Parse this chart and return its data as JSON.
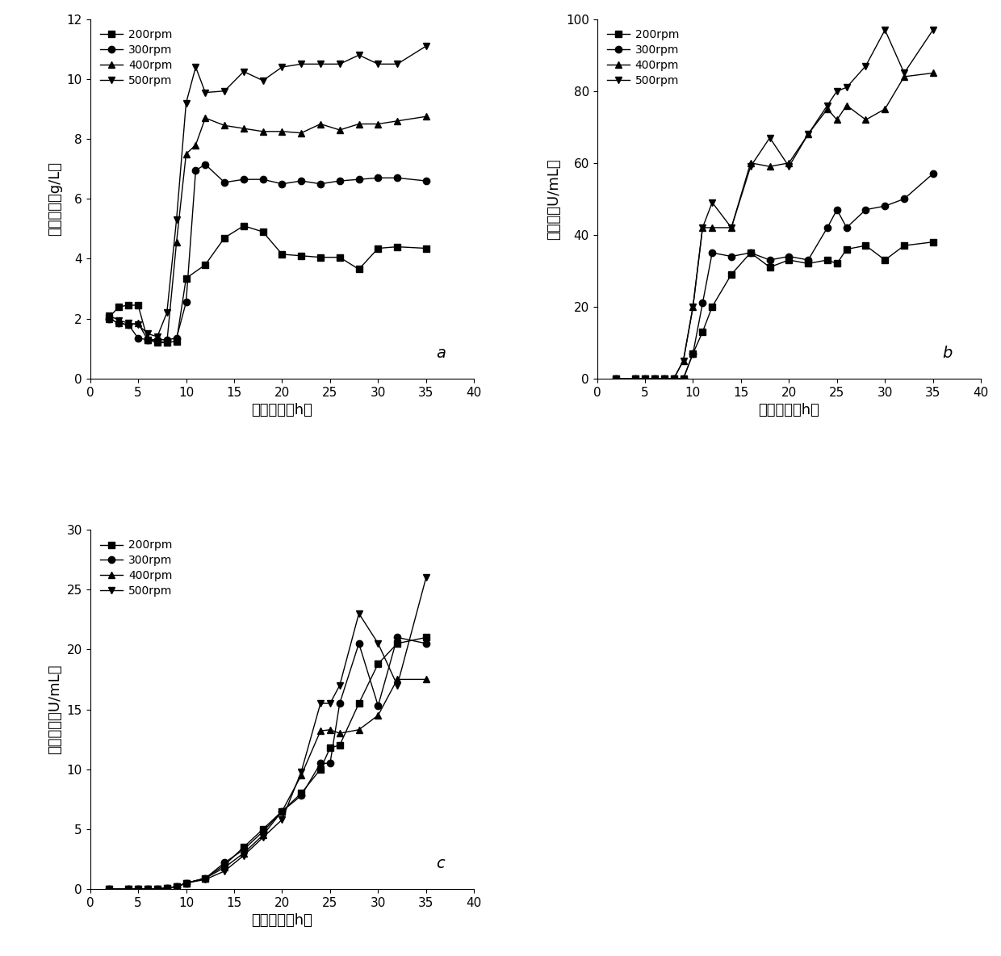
{
  "panel_a": {
    "xlabel": "发酵时间（h）",
    "ylabel": "菌体干重（g/L）",
    "label": "a",
    "xlim": [
      0,
      40
    ],
    "ylim": [
      0,
      12
    ],
    "xticks": [
      0,
      5,
      10,
      15,
      20,
      25,
      30,
      35,
      40
    ],
    "yticks": [
      0,
      2,
      4,
      6,
      8,
      10,
      12
    ],
    "series": {
      "200rpm": {
        "x": [
          2,
          3,
          4,
          5,
          6,
          7,
          8,
          9,
          10,
          12,
          14,
          16,
          18,
          20,
          22,
          24,
          26,
          28,
          30,
          32,
          35
        ],
        "y": [
          2.05,
          2.4,
          2.45,
          2.45,
          1.3,
          1.25,
          1.2,
          1.25,
          3.35,
          3.8,
          4.7,
          5.1,
          4.9,
          4.15,
          4.1,
          4.05,
          4.05,
          3.65,
          4.35,
          4.4,
          4.35
        ],
        "marker": "s"
      },
      "300rpm": {
        "x": [
          2,
          3,
          4,
          5,
          6,
          7,
          8,
          9,
          10,
          11,
          12,
          14,
          16,
          18,
          20,
          22,
          24,
          26,
          28,
          30,
          32,
          35
        ],
        "y": [
          2.0,
          1.85,
          1.8,
          1.35,
          1.3,
          1.3,
          1.3,
          1.35,
          2.55,
          6.95,
          7.15,
          6.55,
          6.65,
          6.65,
          6.5,
          6.6,
          6.5,
          6.6,
          6.65,
          6.7,
          6.7,
          6.6
        ],
        "marker": "o"
      },
      "400rpm": {
        "x": [
          2,
          3,
          4,
          5,
          6,
          7,
          8,
          9,
          10,
          11,
          12,
          14,
          16,
          18,
          20,
          22,
          24,
          26,
          28,
          30,
          32,
          35
        ],
        "y": [
          2.0,
          1.85,
          1.8,
          1.85,
          1.3,
          1.2,
          1.2,
          4.55,
          7.5,
          7.8,
          8.7,
          8.45,
          8.35,
          8.25,
          8.25,
          8.2,
          8.5,
          8.3,
          8.5,
          8.5,
          8.6,
          8.75
        ],
        "marker": "^"
      },
      "500rpm": {
        "x": [
          2,
          3,
          4,
          5,
          6,
          7,
          8,
          9,
          10,
          11,
          12,
          14,
          16,
          18,
          20,
          22,
          24,
          26,
          28,
          30,
          32,
          35
        ],
        "y": [
          2.1,
          1.95,
          1.85,
          1.8,
          1.5,
          1.4,
          2.2,
          5.3,
          9.2,
          10.4,
          9.55,
          9.6,
          10.25,
          9.95,
          10.4,
          10.5,
          10.5,
          10.5,
          10.8,
          10.5,
          10.5,
          11.1
        ],
        "marker": "v"
      }
    }
  },
  "panel_b": {
    "xlabel": "发酵时间（h）",
    "ylabel": "总酶活（U/mL）",
    "label": "b",
    "xlim": [
      0,
      40
    ],
    "ylim": [
      0,
      100
    ],
    "xticks": [
      0,
      5,
      10,
      15,
      20,
      25,
      30,
      35,
      40
    ],
    "yticks": [
      0,
      20,
      40,
      60,
      80,
      100
    ],
    "series": {
      "200rpm": {
        "x": [
          2,
          4,
          5,
          6,
          7,
          8,
          9,
          10,
          11,
          12,
          14,
          16,
          18,
          20,
          22,
          24,
          25,
          26,
          28,
          30,
          32,
          35
        ],
        "y": [
          0,
          0,
          0,
          0,
          0,
          0,
          0,
          7,
          13,
          20,
          29,
          35,
          31,
          33,
          32,
          33,
          32,
          36,
          37,
          33,
          37,
          38
        ],
        "marker": "s"
      },
      "300rpm": {
        "x": [
          2,
          4,
          5,
          6,
          7,
          8,
          9,
          10,
          11,
          12,
          14,
          16,
          18,
          20,
          22,
          24,
          25,
          26,
          28,
          30,
          32,
          35
        ],
        "y": [
          0,
          0,
          0,
          0,
          0,
          0,
          0,
          7,
          21,
          35,
          34,
          35,
          33,
          34,
          33,
          42,
          47,
          42,
          47,
          48,
          50,
          57
        ],
        "marker": "o"
      },
      "400rpm": {
        "x": [
          2,
          4,
          5,
          6,
          7,
          8,
          9,
          10,
          11,
          12,
          14,
          16,
          18,
          20,
          22,
          24,
          25,
          26,
          28,
          30,
          32,
          35
        ],
        "y": [
          0,
          0,
          0,
          0,
          0,
          0,
          5,
          20,
          42,
          42,
          42,
          60,
          59,
          60,
          68,
          75,
          72,
          76,
          72,
          75,
          84,
          85
        ],
        "marker": "^"
      },
      "500rpm": {
        "x": [
          2,
          4,
          5,
          6,
          7,
          8,
          9,
          10,
          11,
          12,
          14,
          16,
          18,
          20,
          22,
          24,
          25,
          26,
          28,
          30,
          32,
          35
        ],
        "y": [
          0,
          0,
          0,
          0,
          0,
          0,
          5,
          20,
          42,
          49,
          42,
          59,
          67,
          59,
          68,
          76,
          80,
          81,
          87,
          97,
          85,
          97
        ],
        "marker": "v"
      }
    }
  },
  "panel_c": {
    "xlabel": "发酵时间（h）",
    "ylabel": "胞外酶活（U/mL）",
    "label": "c",
    "xlim": [
      0,
      40
    ],
    "ylim": [
      0,
      30
    ],
    "xticks": [
      0,
      5,
      10,
      15,
      20,
      25,
      30,
      35,
      40
    ],
    "yticks": [
      0,
      5,
      10,
      15,
      20,
      25,
      30
    ],
    "series": {
      "200rpm": {
        "x": [
          2,
          4,
          5,
          6,
          7,
          8,
          9,
          10,
          12,
          14,
          16,
          18,
          20,
          22,
          24,
          25,
          26,
          28,
          30,
          32,
          35
        ],
        "y": [
          0,
          0,
          0,
          0,
          0,
          0.1,
          0.2,
          0.5,
          0.9,
          2.0,
          3.5,
          5.0,
          6.5,
          8.0,
          10.0,
          11.8,
          12.0,
          15.5,
          18.8,
          20.5,
          21.0
        ],
        "marker": "s"
      },
      "300rpm": {
        "x": [
          2,
          4,
          5,
          6,
          7,
          8,
          9,
          10,
          12,
          14,
          16,
          18,
          20,
          22,
          24,
          25,
          26,
          28,
          30,
          32,
          35
        ],
        "y": [
          0,
          0,
          0,
          0,
          0,
          0.1,
          0.2,
          0.5,
          0.9,
          2.2,
          3.3,
          4.8,
          6.5,
          7.8,
          10.5,
          10.5,
          15.5,
          20.5,
          15.3,
          21.0,
          20.5
        ],
        "marker": "o"
      },
      "400rpm": {
        "x": [
          2,
          4,
          5,
          6,
          7,
          8,
          9,
          10,
          12,
          14,
          16,
          18,
          20,
          22,
          24,
          25,
          26,
          28,
          30,
          32,
          35
        ],
        "y": [
          0,
          0,
          0,
          0,
          0,
          0.1,
          0.2,
          0.5,
          0.9,
          1.8,
          3.0,
          4.5,
          6.5,
          9.5,
          13.2,
          13.3,
          13.0,
          13.3,
          14.5,
          17.5,
          17.5
        ],
        "marker": "^"
      },
      "500rpm": {
        "x": [
          2,
          4,
          5,
          6,
          7,
          8,
          9,
          10,
          12,
          14,
          16,
          18,
          20,
          22,
          24,
          25,
          26,
          28,
          30,
          32,
          35
        ],
        "y": [
          0,
          0,
          0,
          0,
          0,
          0.1,
          0.2,
          0.5,
          0.8,
          1.5,
          2.8,
          4.3,
          5.8,
          9.8,
          15.5,
          15.5,
          17.0,
          23.0,
          20.5,
          17.0,
          26.0
        ],
        "marker": "v"
      }
    }
  },
  "line_color": "#000000",
  "marker_size": 6,
  "legend_labels": [
    "200rpm",
    "300rpm",
    "400rpm",
    "500rpm"
  ],
  "legend_markers": [
    "s",
    "o",
    "^",
    "v"
  ]
}
